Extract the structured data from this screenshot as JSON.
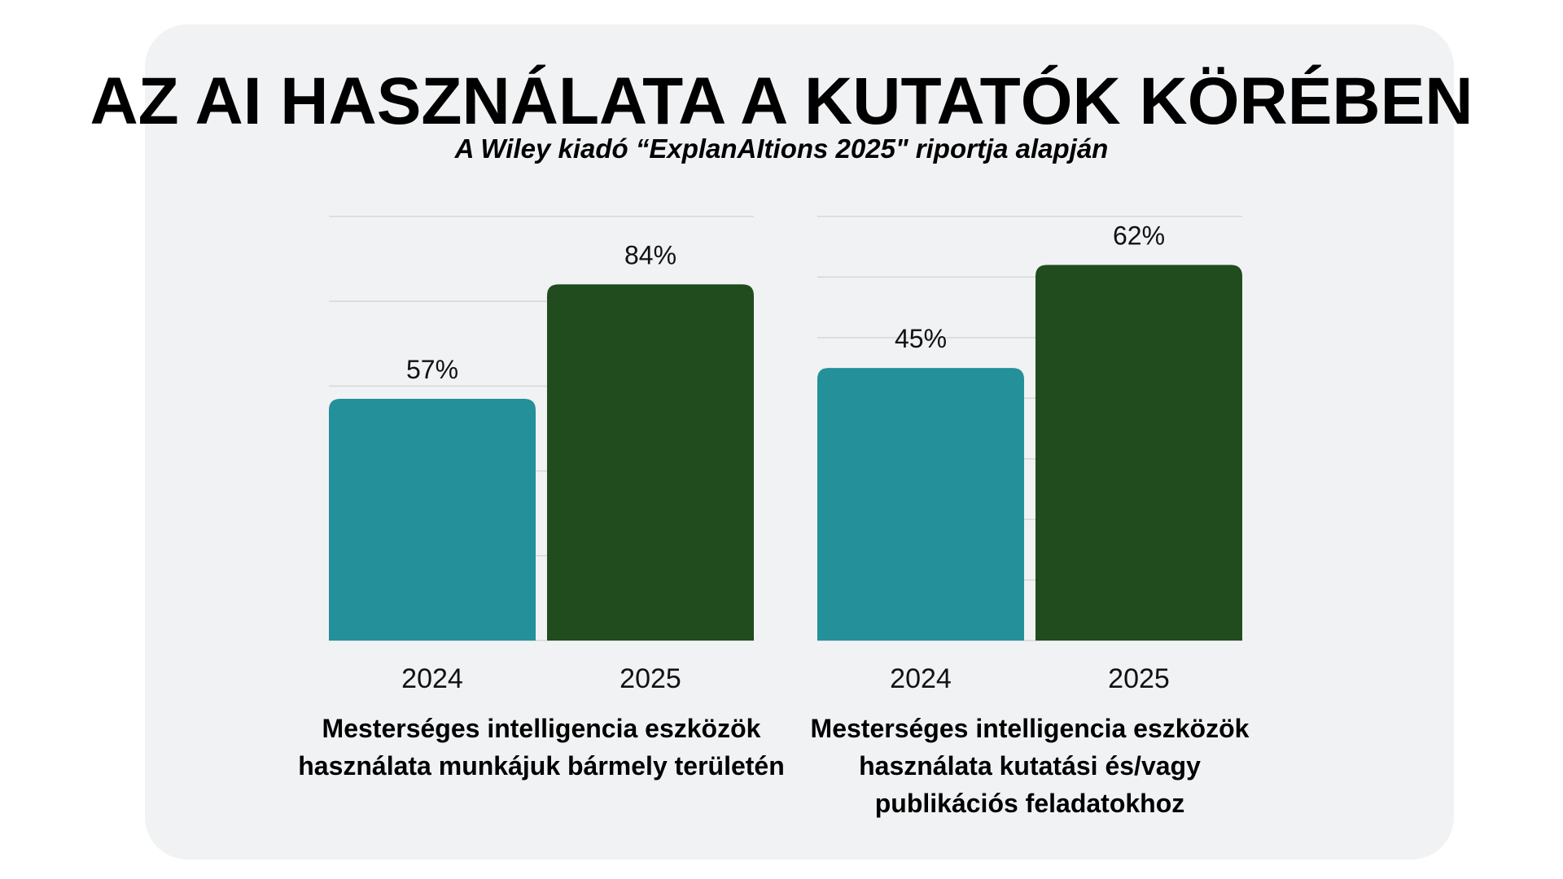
{
  "title": "AZ AI HASZNÁLATA A KUTATÓK KÖRÉBEN",
  "subtitle": "A Wiley kiadó “ExplanAItions 2025\" riportja alapján",
  "colors": {
    "2024": "#24909a",
    "2025": "#204c1e",
    "background": "#f1f2f4"
  },
  "chart_data": [
    {
      "type": "bar",
      "categories": [
        "2024",
        "2025"
      ],
      "values": [
        57,
        84
      ],
      "value_labels": [
        "57%",
        "84%"
      ],
      "ylim": [
        0,
        100
      ],
      "ystep": 20,
      "grid": true,
      "xlabel": "Mesterséges intelligencia eszközök használata munkájuk bármely területén"
    },
    {
      "type": "bar",
      "categories": [
        "2024",
        "2025"
      ],
      "values": [
        45,
        62
      ],
      "value_labels": [
        "45%",
        "62%"
      ],
      "ylim": [
        0,
        70
      ],
      "ystep": 10,
      "grid": true,
      "xlabel": "Mesterséges intelligencia eszközök használata kutatási és/vagy publikációs feladatokhoz"
    }
  ]
}
